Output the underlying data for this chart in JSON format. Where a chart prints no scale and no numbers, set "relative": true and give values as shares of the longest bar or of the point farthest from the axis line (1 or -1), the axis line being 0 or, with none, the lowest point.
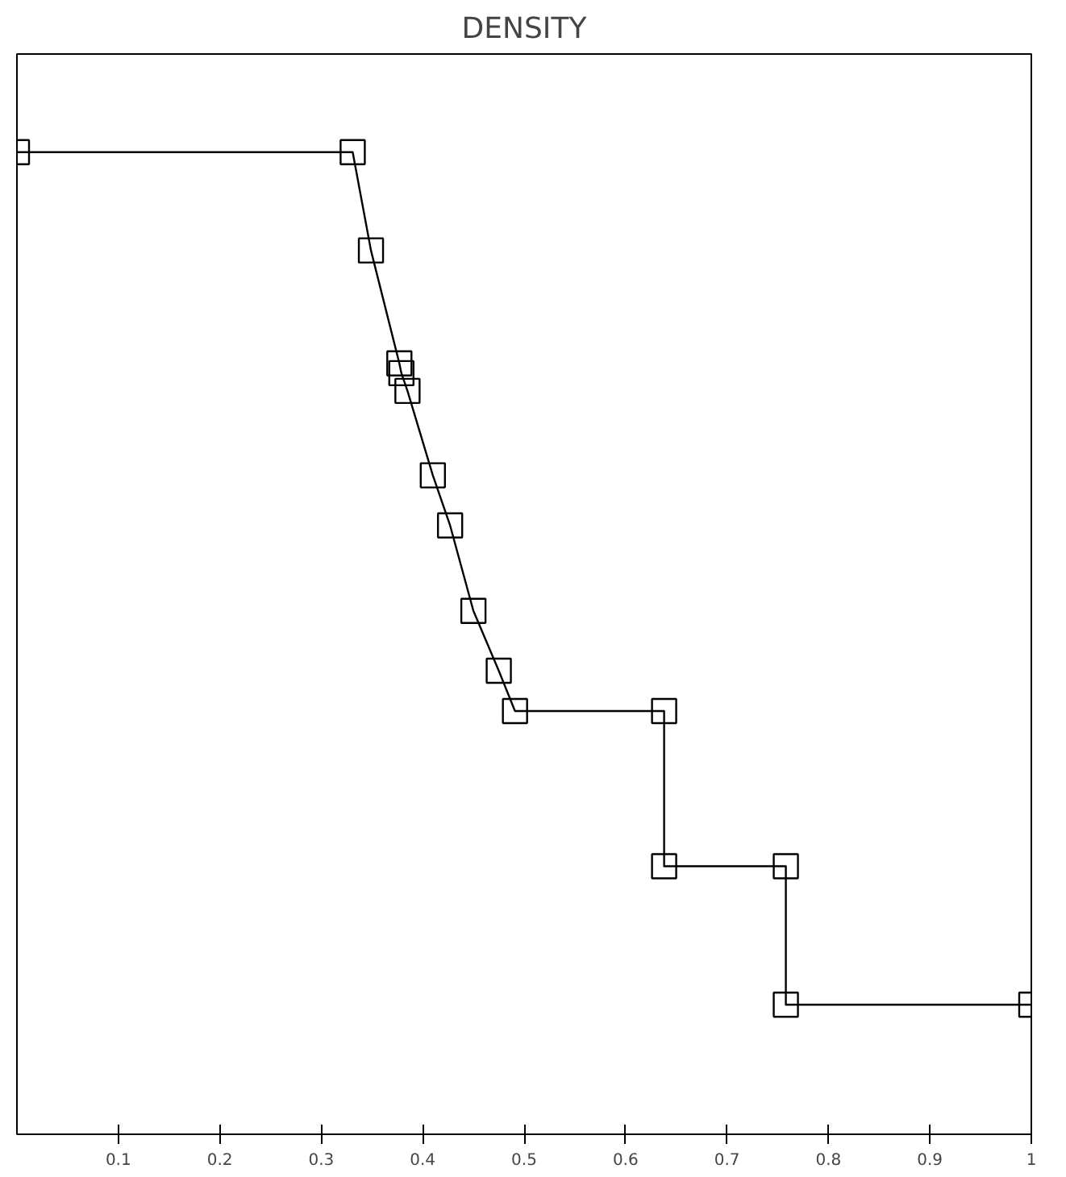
{
  "chart_data": {
    "type": "line",
    "title": "DENSITY",
    "relative": true,
    "marker": "square",
    "line_style": "solid",
    "grid": false,
    "x": [
      0,
      0.331,
      0.349,
      0.377,
      0.379,
      0.385,
      0.41,
      0.427,
      0.45,
      0.475,
      0.491,
      0.638,
      0.638,
      0.758,
      0.758,
      1.0
    ],
    "series": [
      {
        "color": "#000000",
        "values": [
          1.0,
          1.0,
          0.9,
          0.785,
          0.775,
          0.757,
          0.671,
          0.62,
          0.533,
          0.472,
          0.431,
          0.431,
          0.273,
          0.273,
          0.132,
          0.132
        ]
      }
    ],
    "xlim": [
      0,
      1
    ],
    "xticks": [
      {
        "value": 0.1,
        "label": "0.1"
      },
      {
        "value": 0.2,
        "label": "0.2"
      },
      {
        "value": 0.3,
        "label": "0.3"
      },
      {
        "value": 0.4,
        "label": "0.4"
      },
      {
        "value": 0.5,
        "label": "0.5"
      },
      {
        "value": 0.6,
        "label": "0.6"
      },
      {
        "value": 0.7,
        "label": "0.7"
      },
      {
        "value": 0.8,
        "label": "0.8"
      },
      {
        "value": 0.9,
        "label": "0.9"
      },
      {
        "value": 1,
        "label": "1"
      }
    ]
  }
}
